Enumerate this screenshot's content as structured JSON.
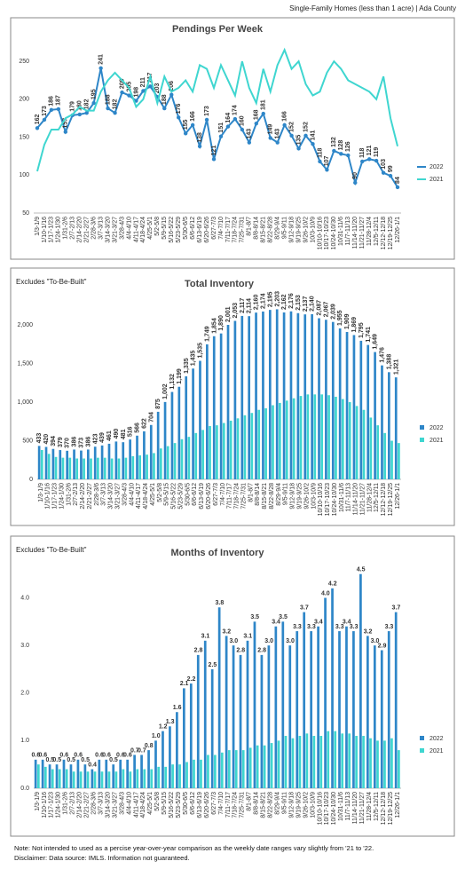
{
  "header": "Single-Family Homes (less than 1 acre) | Ada County",
  "chart_data": [
    {
      "type": "line",
      "title": "Pendings Per Week",
      "categories": [
        "1/3-1/9",
        "1/10-1/16",
        "1/17-1/23",
        "1/24-1/30",
        "1/31-2/6",
        "2/7-2/13",
        "2/14-2/20",
        "2/21-2/27",
        "2/28-3/6",
        "3/7-3/13",
        "3/14-3/20",
        "3/21-3/27",
        "3/28-4/3",
        "4/4-4/10",
        "4/11-4/17",
        "4/18-4/24",
        "4/25-5/1",
        "5/2-5/8",
        "5/9-5/15",
        "5/16-5/22",
        "5/23-5/29",
        "5/30-6/5",
        "6/6-6/12",
        "6/13-6/19",
        "6/20-6/26",
        "6/27-7/3",
        "7/4-7/10",
        "7/11-7/17",
        "7/18-7/24",
        "7/25-7/31",
        "8/1-8/7",
        "8/8-8/14",
        "8/15-8/21",
        "8/22-8/28",
        "8/29-9/4",
        "9/5-9/11",
        "9/12-9/18",
        "9/19-9/25",
        "9/26-10/2",
        "10/3-10/9",
        "10/10-10/16",
        "10/17-10/23",
        "10/24-10/30",
        "10/31-11/6",
        "11/7-11/13",
        "11/14-11/20",
        "11/21-11/27",
        "11/28-12/4",
        "12/5-12/11",
        "12/12-12/18",
        "12/19-12/25",
        "12/26-1/1"
      ],
      "series": [
        {
          "name": "2022",
          "color": "#2e86c8",
          "values": [
            162,
            173,
            186,
            187,
            157,
            179,
            180,
            182,
            195,
            241,
            188,
            182,
            209,
            205,
            198,
            211,
            217,
            203,
            188,
            206,
            176,
            155,
            166,
            138,
            173,
            121,
            151,
            164,
            174,
            160,
            143,
            168,
            181,
            149,
            143,
            166,
            152,
            135,
            152,
            141,
            118,
            107,
            132,
            128,
            126,
            90,
            118,
            121,
            119,
            103,
            99,
            84
          ]
        },
        {
          "name": "2021",
          "color": "#3fd6d0",
          "values": [
            105,
            140,
            160,
            160,
            175,
            180,
            190,
            185,
            185,
            210,
            225,
            235,
            225,
            215,
            190,
            200,
            230,
            195,
            230,
            210,
            215,
            225,
            210,
            245,
            240,
            215,
            245,
            225,
            205,
            250,
            215,
            195,
            240,
            210,
            245,
            265,
            240,
            250,
            220,
            205,
            210,
            235,
            250,
            240,
            225,
            220,
            215,
            210,
            200,
            230,
            175,
            138
          ]
        }
      ],
      "ylim": [
        50,
        270
      ],
      "yticks": [
        50,
        100,
        150,
        200,
        250
      ]
    },
    {
      "type": "bar",
      "title": "Total Inventory",
      "subtitle": "Excludes \"To-Be-Built\"",
      "categories": [
        "1/3-1/9",
        "1/10-1/16",
        "1/17-1/23",
        "1/24-1/30",
        "1/31-2/6",
        "2/7-2/13",
        "2/14-2/20",
        "2/21-2/27",
        "2/28-3/6",
        "3/7-3/13",
        "3/14-3/20",
        "3/21-3/27",
        "3/28-4/3",
        "4/4-4/10",
        "4/11-4/17",
        "4/18-4/24",
        "4/25-5/1",
        "5/2-5/8",
        "5/9-5/15",
        "5/16-5/22",
        "5/23-5/29",
        "5/30-6/5",
        "6/6-6/12",
        "6/13-6/19",
        "6/20-6/26",
        "6/27-7/3",
        "7/4-7/10",
        "7/11-7/17",
        "7/18-7/24",
        "7/25-7/31",
        "8/1-8/7",
        "8/8-8/14",
        "8/15-8/21",
        "8/22-8/28",
        "8/29-9/4",
        "9/5-9/11",
        "9/12-9/18",
        "9/19-9/25",
        "9/26-10/2",
        "10/3-10/9",
        "10/10-10/16",
        "10/17-10/23",
        "10/24-10/30",
        "10/31-11/6",
        "11/7-11/13",
        "11/14-11/20",
        "11/21-11/27",
        "11/28-12/4",
        "12/5-12/11",
        "12/12-12/18",
        "12/19-12/25",
        "12/26-1/1"
      ],
      "series": [
        {
          "name": "2022",
          "color": "#2e86c8",
          "values": [
            433,
            420,
            394,
            379,
            370,
            386,
            373,
            386,
            423,
            439,
            461,
            490,
            481,
            516,
            566,
            622,
            704,
            875,
            1002,
            1132,
            1199,
            1335,
            1435,
            1535,
            1749,
            1854,
            1890,
            2001,
            2053,
            2117,
            2114,
            2160,
            2174,
            2195,
            2203,
            2162,
            2176,
            2153,
            2137,
            2140,
            2087,
            2067,
            2039,
            1955,
            1909,
            1869,
            1795,
            1741,
            1649,
            1476,
            1388,
            1321
          ],
          "value_labels": [
            "433",
            "420",
            "394",
            "379",
            "370",
            "386",
            "373",
            "386",
            "423",
            "439",
            "461",
            "490",
            "481",
            "516",
            "566",
            "622",
            "704",
            "875",
            "1,002",
            "1,132",
            "1,199",
            "1,335",
            "1,435",
            "1,535",
            "1,749",
            "1,854",
            "1,890",
            "2,001",
            "2,053",
            "2,117",
            "2,114",
            "2,160",
            "2,174",
            "2,195",
            "2,203",
            "2,162",
            "2,176",
            "2,153",
            "2,137",
            "2,140",
            "2,087",
            "2,067",
            "2,039",
            "1,955",
            "1,909",
            "1,869",
            "1,795",
            "1,741",
            "1,649",
            "1,476",
            "1,388",
            "1,321"
          ]
        },
        {
          "name": "2021",
          "color": "#3fd6d0",
          "values": [
            380,
            330,
            290,
            280,
            280,
            270,
            270,
            270,
            280,
            280,
            270,
            270,
            280,
            300,
            310,
            320,
            340,
            400,
            430,
            470,
            520,
            550,
            600,
            640,
            690,
            700,
            730,
            760,
            790,
            830,
            860,
            900,
            920,
            960,
            990,
            1020,
            1050,
            1080,
            1100,
            1100,
            1100,
            1090,
            1070,
            1040,
            1000,
            950,
            900,
            800,
            700,
            600,
            500,
            470
          ]
        }
      ],
      "ylim": [
        0,
        2300
      ],
      "yticks": [
        0,
        500,
        {
          "value": 1000,
          "label": "1,000"
        },
        {
          "value": 1500,
          "label": "1,500"
        },
        {
          "value": 2000,
          "label": "2,000"
        }
      ]
    },
    {
      "type": "bar",
      "title": "Months of Inventory",
      "subtitle": "Excludes \"To-Be-Built\"",
      "categories": [
        "1/3-1/9",
        "1/10-1/16",
        "1/17-1/23",
        "1/24-1/30",
        "1/31-2/6",
        "2/7-2/13",
        "2/14-2/20",
        "2/21-2/27",
        "2/28-3/6",
        "3/7-3/13",
        "3/14-3/20",
        "3/21-3/27",
        "3/28-4/3",
        "4/4-4/10",
        "4/11-4/17",
        "4/18-4/24",
        "4/25-5/1",
        "5/2-5/8",
        "5/9-5/15",
        "5/16-5/22",
        "5/23-5/29",
        "5/30-6/5",
        "6/6-6/12",
        "6/13-6/19",
        "6/20-6/26",
        "6/27-7/3",
        "7/4-7/10",
        "7/11-7/17",
        "7/18-7/24",
        "7/25-7/31",
        "8/1-8/7",
        "8/8-8/14",
        "8/15-8/21",
        "8/22-8/28",
        "8/29-9/4",
        "9/5-9/11",
        "9/12-9/18",
        "9/19-9/25",
        "9/26-10/2",
        "10/3-10/9",
        "10/10-10/16",
        "10/17-10/23",
        "10/24-10/30",
        "10/31-11/6",
        "11/7-11/13",
        "11/14-11/20",
        "11/21-11/27",
        "11/28-12/4",
        "12/5-12/11",
        "12/12-12/18",
        "12/19-12/25",
        "12/26-1/1"
      ],
      "series": [
        {
          "name": "2022",
          "color": "#2e86c8",
          "values": [
            0.6,
            0.6,
            0.5,
            0.5,
            0.6,
            0.5,
            0.6,
            0.5,
            0.4,
            0.6,
            0.6,
            0.5,
            0.6,
            0.6,
            0.7,
            0.7,
            0.8,
            1.0,
            1.2,
            1.3,
            1.6,
            2.1,
            2.2,
            2.8,
            3.1,
            2.5,
            3.8,
            3.2,
            3.0,
            2.8,
            3.1,
            3.5,
            2.8,
            3.0,
            3.4,
            3.5,
            3.0,
            3.3,
            3.7,
            3.3,
            3.4,
            4.0,
            4.2,
            3.3,
            3.4,
            3.3,
            4.5,
            3.2,
            3.0,
            2.9,
            3.3,
            3.7
          ],
          "value_labels": [
            "0.6",
            "0.6",
            "0.5",
            "0.5",
            "0.6",
            "0.5",
            "0.6",
            "0.5",
            "0.4",
            "0.6",
            "0.6",
            "0.5",
            "0.6",
            "0.6",
            "0.7",
            "0.7",
            "0.8",
            "1.0",
            "1.2",
            "1.3",
            "1.6",
            "2.1",
            "2.2",
            "2.8",
            "3.1",
            "2.5",
            "3.8",
            "3.2",
            "3.0",
            "2.8",
            "3.1",
            "3.5",
            "2.8",
            "3.0",
            "3.4",
            "3.5",
            "3.0",
            "3.3",
            "3.7",
            "3.3",
            "3.4",
            "4.0",
            "4.2",
            "3.3",
            "3.4",
            "3.3",
            "4.5",
            "3.2",
            "3.0",
            "2.9",
            "3.3",
            "3.7"
          ]
        },
        {
          "name": "2021",
          "color": "#3fd6d0",
          "values": [
            0.5,
            0.45,
            0.4,
            0.4,
            0.4,
            0.35,
            0.35,
            0.35,
            0.35,
            0.35,
            0.35,
            0.35,
            0.4,
            0.35,
            0.4,
            0.4,
            0.4,
            0.45,
            0.45,
            0.5,
            0.5,
            0.55,
            0.6,
            0.6,
            0.7,
            0.7,
            0.75,
            0.8,
            0.8,
            0.8,
            0.85,
            0.9,
            0.9,
            0.95,
            1.0,
            1.1,
            1.05,
            1.1,
            1.15,
            1.1,
            1.1,
            1.2,
            1.2,
            1.15,
            1.15,
            1.1,
            1.1,
            1.05,
            1.0,
            1.0,
            1.05,
            0.8
          ]
        }
      ],
      "ylim": [
        0,
        4.7
      ],
      "yticks": [
        {
          "value": 0,
          "label": "0.0"
        },
        {
          "value": 1,
          "label": "1.0"
        },
        {
          "value": 2,
          "label": "2.0"
        },
        {
          "value": 3,
          "label": "3.0"
        },
        {
          "value": 4,
          "label": "4.0"
        }
      ]
    }
  ],
  "notes": [
    "Note: Not intended to used as a percise year-over-year comparison as the weekly date ranges vary slightly from '21 to '22.",
    "Disclaimer: Data source: IMLS. Information not guaranteed."
  ]
}
